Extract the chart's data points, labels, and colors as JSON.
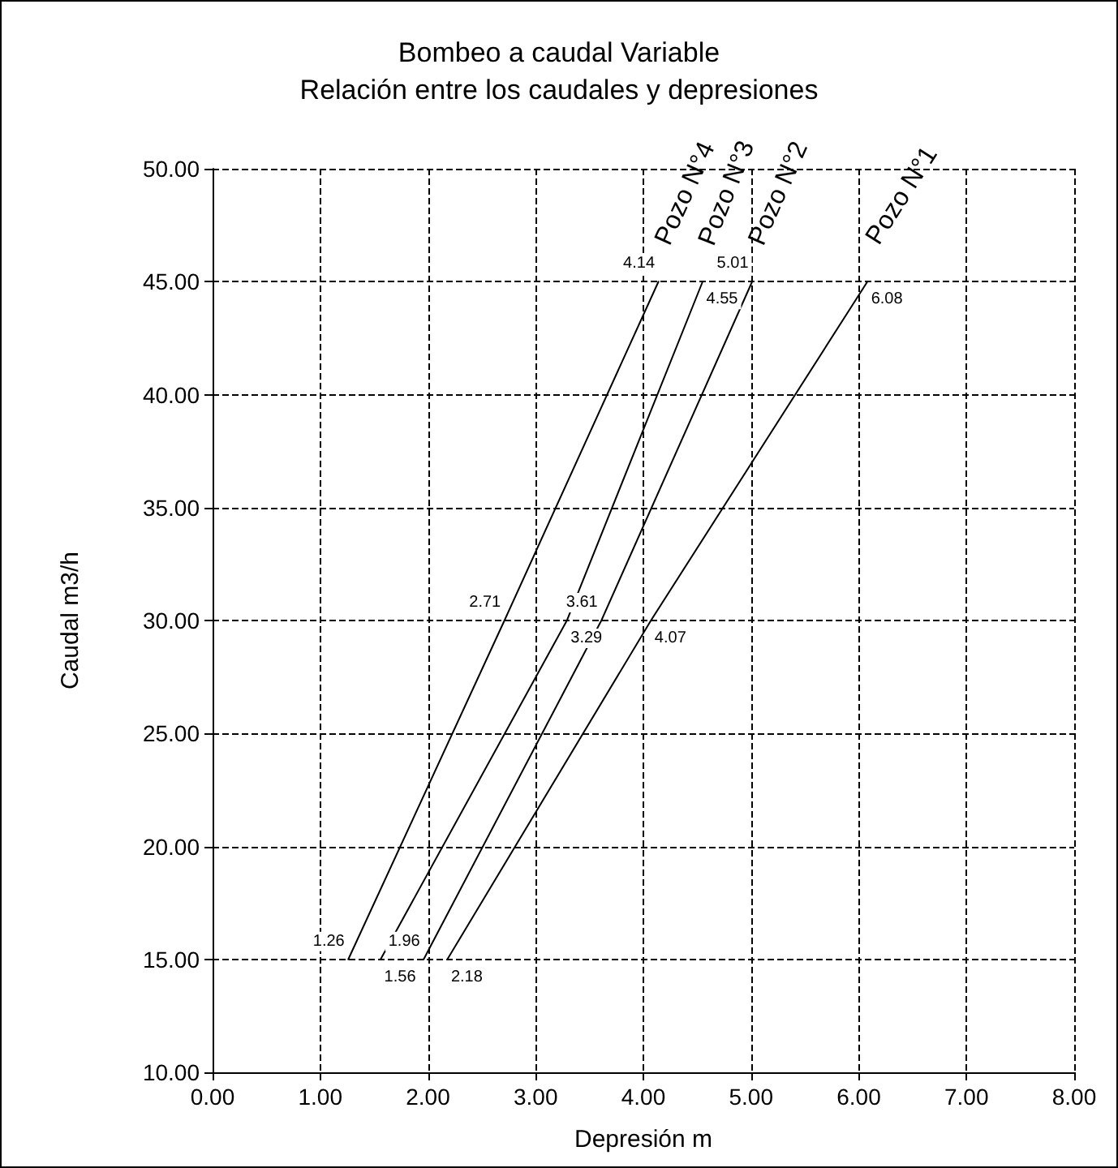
{
  "chart_data": {
    "type": "line",
    "title": "Bombeo a caudal Variable",
    "subtitle": "Relación entre los caudales y depresiones",
    "xlabel": "Depresión m",
    "ylabel": "Caudal m3/h",
    "series": [
      {
        "name": "Pozo N°4",
        "color": "#000000",
        "x": [
          1.26,
          2.71,
          4.14
        ],
        "values": [
          15,
          30,
          45
        ]
      },
      {
        "name": "Pozo N°3",
        "color": "#000000",
        "x": [
          1.56,
          3.29,
          4.55
        ],
        "values": [
          15,
          30,
          45
        ]
      },
      {
        "name": "Pozo N°2",
        "color": "#000000",
        "x": [
          1.96,
          3.61,
          5.01
        ],
        "values": [
          15,
          30,
          45
        ]
      },
      {
        "name": "Pozo N°1",
        "color": "#000000",
        "x": [
          2.18,
          4.07,
          6.08
        ],
        "values": [
          15,
          30,
          45
        ]
      }
    ],
    "annotations": [
      {
        "text": "1.26",
        "x": 1.26,
        "y": 15
      },
      {
        "text": "1.56",
        "x": 1.56,
        "y": 15
      },
      {
        "text": "1.96",
        "x": 1.96,
        "y": 15
      },
      {
        "text": "2.18",
        "x": 2.18,
        "y": 15
      },
      {
        "text": "2.71",
        "x": 2.71,
        "y": 30
      },
      {
        "text": "3.29",
        "x": 3.29,
        "y": 30
      },
      {
        "text": "3.61",
        "x": 3.61,
        "y": 30
      },
      {
        "text": "4.07",
        "x": 4.07,
        "y": 30
      },
      {
        "text": "4.14",
        "x": 4.14,
        "y": 45
      },
      {
        "text": "4.55",
        "x": 4.55,
        "y": 45
      },
      {
        "text": "5.01",
        "x": 5.01,
        "y": 45
      },
      {
        "text": "6.08",
        "x": 6.08,
        "y": 45
      }
    ],
    "xlim": [
      0,
      8
    ],
    "xticks": [
      {
        "value": 0,
        "label": "0.00"
      },
      {
        "value": 1,
        "label": "1.00"
      },
      {
        "value": 2,
        "label": "2.00"
      },
      {
        "value": 3,
        "label": "3.00"
      },
      {
        "value": 4,
        "label": "4.00"
      },
      {
        "value": 5,
        "label": "5.00"
      },
      {
        "value": 6,
        "label": "6.00"
      },
      {
        "value": 7,
        "label": "7.00"
      },
      {
        "value": 8,
        "label": "8.00"
      }
    ],
    "ylim": [
      10,
      50
    ],
    "yticks": [
      {
        "value": 10,
        "label": "10.00"
      },
      {
        "value": 15,
        "label": "15.00"
      },
      {
        "value": 20,
        "label": "20.00"
      },
      {
        "value": 25,
        "label": "25.00"
      },
      {
        "value": 30,
        "label": "30.00"
      },
      {
        "value": 35,
        "label": "35.00"
      },
      {
        "value": 40,
        "label": "40.00"
      },
      {
        "value": 45,
        "label": "45.00"
      },
      {
        "value": 50,
        "label": "50.00"
      }
    ],
    "grid": true,
    "legend": false,
    "marker": "none",
    "line_style": "solid"
  }
}
